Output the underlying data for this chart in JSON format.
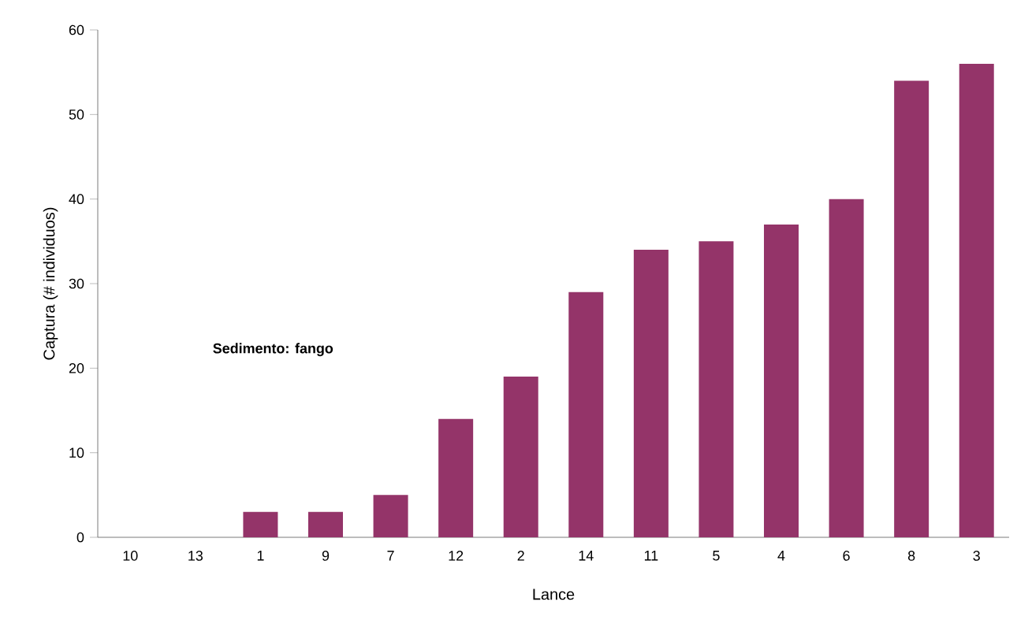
{
  "chart_data": {
    "type": "bar",
    "xlabel": "Lance",
    "ylabel": "Captura (# individuos)",
    "categories": [
      "10",
      "13",
      "1",
      "9",
      "7",
      "12",
      "2",
      "14",
      "11",
      "5",
      "4",
      "6",
      "8",
      "3"
    ],
    "values": [
      0,
      0,
      3,
      3,
      5,
      14,
      19,
      29,
      34,
      35,
      37,
      40,
      54,
      56
    ],
    "color": "#943469",
    "ylim": [
      0,
      60
    ],
    "yticks": [
      0,
      10,
      20,
      30,
      40,
      50,
      60
    ],
    "grid": false,
    "annotations": [
      "Sedimento: fango"
    ]
  }
}
